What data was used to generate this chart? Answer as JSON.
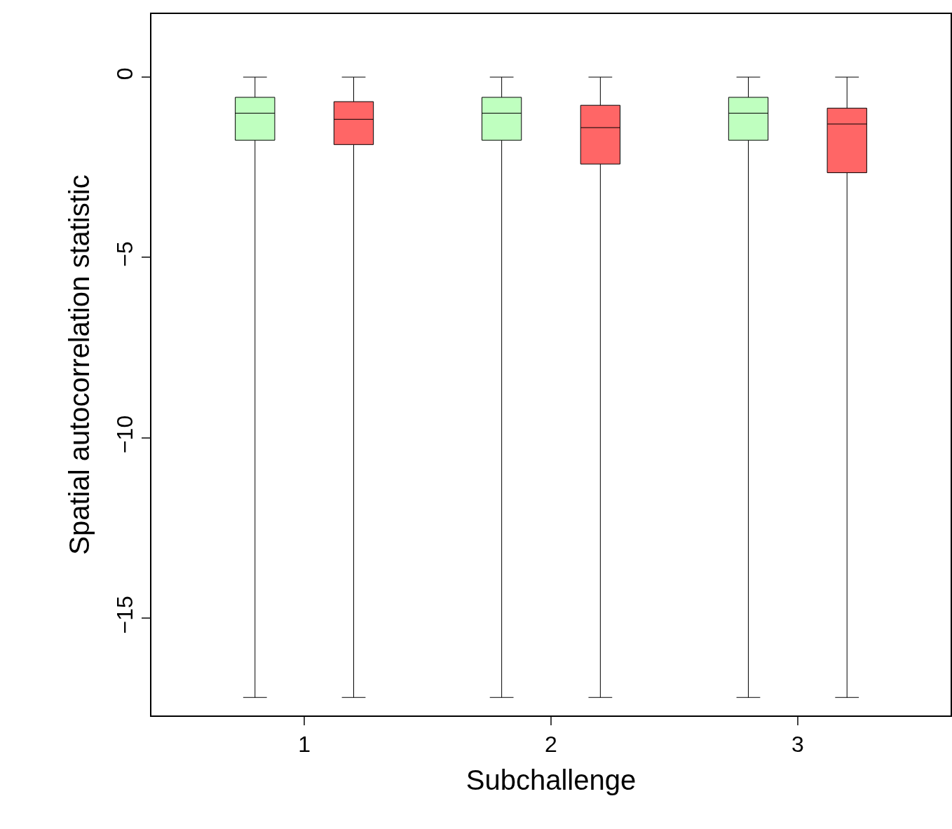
{
  "chart_data": {
    "type": "box",
    "xlabel": "Subchallenge",
    "ylabel": "Spatial autocorrelation statistic",
    "categories": [
      "1",
      "2",
      "3"
    ],
    "ylim": [
      -17.7,
      1.75
    ],
    "yticks": [
      {
        "value": 0,
        "label": "0"
      },
      {
        "value": -5,
        "label": "−5"
      },
      {
        "value": -10,
        "label": "−10"
      },
      {
        "value": -15,
        "label": "−15"
      }
    ],
    "grid": false,
    "series": [
      {
        "color": "#bfffbf",
        "boxes": [
          {
            "low": -17.2,
            "q1": -1.75,
            "median": -1.0,
            "q3": -0.56,
            "high": 0
          },
          {
            "low": -17.2,
            "q1": -1.75,
            "median": -1.0,
            "q3": -0.56,
            "high": 0
          },
          {
            "low": -17.2,
            "q1": -1.75,
            "median": -1.0,
            "q3": -0.56,
            "high": 0
          }
        ]
      },
      {
        "color": "#ff6666",
        "boxes": [
          {
            "low": -17.2,
            "q1": -1.87,
            "median": -1.17,
            "q3": -0.68,
            "high": 0
          },
          {
            "low": -17.2,
            "q1": -2.41,
            "median": -1.4,
            "q3": -0.78,
            "high": 0
          },
          {
            "low": -17.2,
            "q1": -2.65,
            "median": -1.3,
            "q3": -0.86,
            "high": 0
          }
        ]
      }
    ]
  }
}
